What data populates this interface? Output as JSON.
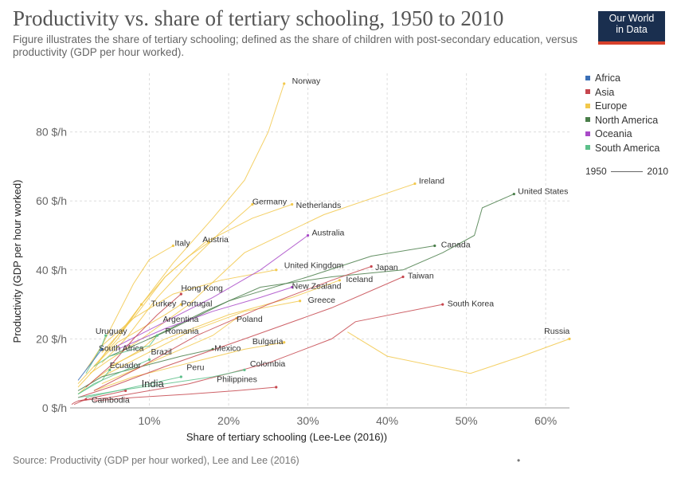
{
  "title": "Productivity vs. share of tertiary schooling, 1950 to 2010",
  "subtitle": "Figure illustrates the share of tertiary schooling; defined as the share of children with post-secondary education, versus productivity (GDP per hour worked).",
  "logo": {
    "line1": "Our World",
    "line2": "in Data"
  },
  "source": "Source: Productivity (GDP per hour worked), Lee and Lee (2016)",
  "footer_dot": "•",
  "timeline": {
    "start": "1950",
    "end": "2010"
  },
  "chart_data": {
    "type": "scatter",
    "xlabel": "Share of tertiary schooling (Lee-Lee (2016))",
    "ylabel": "Productivity (GDP per hour worked)",
    "xlim": [
      0,
      63
    ],
    "ylim": [
      0,
      97
    ],
    "x_ticks": [
      {
        "value": 10,
        "label": "10%"
      },
      {
        "value": 20,
        "label": "20%"
      },
      {
        "value": 30,
        "label": "30%"
      },
      {
        "value": 40,
        "label": "40%"
      },
      {
        "value": 50,
        "label": "50%"
      },
      {
        "value": 60,
        "label": "60%"
      }
    ],
    "y_ticks": [
      {
        "value": 0,
        "label": "0 $/h"
      },
      {
        "value": 20,
        "label": "20 $/h"
      },
      {
        "value": 40,
        "label": "40 $/h"
      },
      {
        "value": 60,
        "label": "60 $/h"
      },
      {
        "value": 80,
        "label": "80 $/h"
      }
    ],
    "grid": true,
    "legend_position": "top-right",
    "regions": [
      {
        "name": "Africa",
        "color": "#3b6fb6"
      },
      {
        "name": "Asia",
        "color": "#c6464e"
      },
      {
        "name": "Europe",
        "color": "#f2c84b"
      },
      {
        "name": "North America",
        "color": "#4a7e4a"
      },
      {
        "name": "Oceania",
        "color": "#a94ac8"
      },
      {
        "name": "South America",
        "color": "#5cbf8a"
      }
    ],
    "series": [
      {
        "name": "Norway",
        "region": "Europe",
        "points": [
          [
            6.5,
            22
          ],
          [
            9,
            30
          ],
          [
            13,
            42
          ],
          [
            18,
            55
          ],
          [
            22,
            66
          ],
          [
            25,
            80
          ],
          [
            27,
            94
          ]
        ]
      },
      {
        "name": "Ireland",
        "region": "Europe",
        "points": [
          [
            2.5,
            10
          ],
          [
            5,
            14
          ],
          [
            9,
            20
          ],
          [
            15,
            30
          ],
          [
            22,
            45
          ],
          [
            32,
            56
          ],
          [
            43.5,
            65
          ]
        ]
      },
      {
        "name": "Germany",
        "region": "Europe",
        "points": [
          [
            4,
            13
          ],
          [
            7,
            20
          ],
          [
            11,
            32
          ],
          [
            15,
            42
          ],
          [
            19,
            51
          ],
          [
            22,
            57
          ],
          [
            23,
            59
          ]
        ]
      },
      {
        "name": "Netherlands",
        "region": "Europe",
        "points": [
          [
            4,
            16
          ],
          [
            8,
            26
          ],
          [
            12,
            38
          ],
          [
            17,
            48
          ],
          [
            23,
            55
          ],
          [
            28,
            59
          ]
        ]
      },
      {
        "name": "Italy",
        "region": "Europe",
        "points": [
          [
            2,
            11
          ],
          [
            4,
            18
          ],
          [
            6,
            27
          ],
          [
            8,
            36
          ],
          [
            10,
            43
          ],
          [
            13,
            47
          ]
        ]
      },
      {
        "name": "Austria",
        "region": "Europe",
        "points": [
          [
            3,
            12
          ],
          [
            6,
            20
          ],
          [
            9,
            30
          ],
          [
            12,
            38
          ],
          [
            15,
            44
          ],
          [
            17.5,
            48
          ]
        ]
      },
      {
        "name": "Russia",
        "region": "Europe",
        "points": [
          [
            35,
            22
          ],
          [
            40,
            15
          ],
          [
            50.5,
            10
          ],
          [
            57,
            15
          ],
          [
            63,
            20
          ]
        ]
      },
      {
        "name": "Portugal",
        "region": "Europe",
        "points": [
          [
            1,
            7
          ],
          [
            3,
            12
          ],
          [
            6,
            19
          ],
          [
            9,
            23
          ],
          [
            12,
            27
          ],
          [
            14,
            30
          ]
        ]
      },
      {
        "name": "Romania",
        "region": "Europe",
        "points": [
          [
            1,
            4
          ],
          [
            3,
            8
          ],
          [
            6,
            13
          ],
          [
            9,
            17
          ],
          [
            11,
            21
          ]
        ]
      },
      {
        "name": "Bulgaria",
        "region": "Europe",
        "points": [
          [
            3,
            5
          ],
          [
            8,
            9
          ],
          [
            15,
            13
          ],
          [
            22,
            17
          ],
          [
            27,
            19
          ]
        ]
      },
      {
        "name": "Poland",
        "region": "Europe",
        "points": [
          [
            4,
            7
          ],
          [
            9,
            12
          ],
          [
            14,
            17
          ],
          [
            18,
            21
          ],
          [
            21,
            26
          ]
        ]
      },
      {
        "name": "Greece",
        "region": "Europe",
        "points": [
          [
            4,
            9
          ],
          [
            9,
            15
          ],
          [
            15,
            22
          ],
          [
            22,
            28
          ],
          [
            29,
            31
          ]
        ]
      },
      {
        "name": "Turkey",
        "region": "Europe",
        "points": [
          [
            1,
            6
          ],
          [
            3,
            11
          ],
          [
            5,
            18
          ],
          [
            7,
            24
          ],
          [
            9,
            30
          ]
        ]
      },
      {
        "name": "United Kingdom",
        "region": "Europe",
        "points": [
          [
            4,
            18
          ],
          [
            8,
            26
          ],
          [
            13,
            33
          ],
          [
            19,
            37
          ],
          [
            26,
            40
          ]
        ]
      },
      {
        "name": "Iceland",
        "region": "Europe",
        "points": [
          [
            5,
            12
          ],
          [
            12,
            20
          ],
          [
            20,
            27
          ],
          [
            28,
            32
          ],
          [
            34,
            37
          ]
        ]
      },
      {
        "name": "United States",
        "region": "North America",
        "points": [
          [
            10,
            20
          ],
          [
            17,
            28
          ],
          [
            24,
            35
          ],
          [
            33,
            38
          ],
          [
            42,
            40
          ],
          [
            47,
            45
          ],
          [
            51,
            50
          ],
          [
            52,
            58
          ],
          [
            56,
            62
          ]
        ]
      },
      {
        "name": "Canada",
        "region": "North America",
        "points": [
          [
            5,
            15
          ],
          [
            12,
            22
          ],
          [
            20,
            31
          ],
          [
            30,
            38
          ],
          [
            38,
            44
          ],
          [
            46,
            47
          ]
        ]
      },
      {
        "name": "Mexico",
        "region": "North America",
        "points": [
          [
            1,
            5
          ],
          [
            4,
            9
          ],
          [
            9,
            12
          ],
          [
            14,
            15
          ],
          [
            18,
            17
          ]
        ]
      },
      {
        "name": "Australia",
        "region": "Oceania",
        "points": [
          [
            6,
            18
          ],
          [
            12,
            25
          ],
          [
            18,
            32
          ],
          [
            24,
            40
          ],
          [
            30,
            50
          ]
        ]
      },
      {
        "name": "New Zealand",
        "region": "Oceania",
        "points": [
          [
            6,
            17
          ],
          [
            12,
            23
          ],
          [
            18,
            28
          ],
          [
            24,
            32
          ],
          [
            28,
            35
          ]
        ]
      },
      {
        "name": "Japan",
        "region": "Asia",
        "points": [
          [
            3,
            5
          ],
          [
            9,
            12
          ],
          [
            16,
            21
          ],
          [
            25,
            30
          ],
          [
            33,
            37
          ],
          [
            38,
            41
          ]
        ]
      },
      {
        "name": "Taiwan",
        "region": "Asia",
        "points": [
          [
            1,
            3
          ],
          [
            5,
            6
          ],
          [
            12,
            12
          ],
          [
            22,
            20
          ],
          [
            33,
            29
          ],
          [
            42,
            38
          ]
        ]
      },
      {
        "name": "South Korea",
        "region": "Asia",
        "points": [
          [
            1,
            2
          ],
          [
            5,
            3
          ],
          [
            15,
            7
          ],
          [
            25,
            13
          ],
          [
            33,
            20
          ],
          [
            36,
            25
          ],
          [
            47,
            30
          ]
        ]
      },
      {
        "name": "Hong Kong",
        "region": "Asia",
        "points": [
          [
            2,
            6
          ],
          [
            5,
            12
          ],
          [
            8,
            20
          ],
          [
            11,
            27
          ],
          [
            14,
            33
          ]
        ]
      },
      {
        "name": "India",
        "region": "Asia",
        "points": [
          [
            0.5,
            1
          ],
          [
            1.5,
            2
          ],
          [
            3,
            3
          ],
          [
            5,
            4
          ],
          [
            7,
            5
          ]
        ]
      },
      {
        "name": "Cambodia",
        "region": "Asia",
        "points": [
          [
            0.2,
            1
          ],
          [
            0.5,
            1.5
          ],
          [
            1,
            2
          ],
          [
            2,
            2.5
          ]
        ]
      },
      {
        "name": "Philippines",
        "region": "Asia",
        "points": [
          [
            3,
            2
          ],
          [
            8,
            3
          ],
          [
            15,
            4
          ],
          [
            21,
            5
          ],
          [
            26,
            6
          ]
        ]
      },
      {
        "name": "Argentina",
        "region": "South America",
        "points": [
          [
            3,
            12
          ],
          [
            5,
            15
          ],
          [
            8,
            17
          ],
          [
            10,
            18
          ],
          [
            11,
            21
          ]
        ]
      },
      {
        "name": "Brazil",
        "region": "South America",
        "points": [
          [
            1,
            4
          ],
          [
            3,
            7
          ],
          [
            6,
            10
          ],
          [
            9,
            13
          ],
          [
            10,
            14
          ]
        ]
      },
      {
        "name": "Uruguay",
        "region": "South America",
        "points": [
          [
            2,
            10
          ],
          [
            3,
            14
          ],
          [
            4,
            18
          ],
          [
            4.5,
            21
          ]
        ]
      },
      {
        "name": "Ecuador",
        "region": "South America",
        "points": [
          [
            1,
            4
          ],
          [
            2.5,
            6
          ],
          [
            4,
            8
          ],
          [
            5,
            11
          ]
        ]
      },
      {
        "name": "Peru",
        "region": "South America",
        "points": [
          [
            2,
            3
          ],
          [
            6,
            5
          ],
          [
            10,
            7
          ],
          [
            14,
            9
          ]
        ]
      },
      {
        "name": "Colombia",
        "region": "South America",
        "points": [
          [
            1,
            3
          ],
          [
            6,
            5
          ],
          [
            12,
            7
          ],
          [
            18,
            9
          ],
          [
            22,
            11
          ]
        ]
      },
      {
        "name": "South Africa",
        "region": "Africa",
        "points": [
          [
            1,
            8
          ],
          [
            2,
            11
          ],
          [
            3,
            14
          ],
          [
            4,
            17
          ]
        ]
      }
    ],
    "annotations": [
      {
        "text": "Norway",
        "x": 28,
        "y": 94
      },
      {
        "text": "Ireland",
        "x": 44,
        "y": 65
      },
      {
        "text": "United States",
        "x": 56.5,
        "y": 62
      },
      {
        "text": "Germany",
        "x": 23,
        "y": 59
      },
      {
        "text": "Netherlands",
        "x": 28.5,
        "y": 58
      },
      {
        "text": "Australia",
        "x": 30.5,
        "y": 50
      },
      {
        "text": "Italy",
        "x": 13.2,
        "y": 47
      },
      {
        "text": "Austria",
        "x": 16.7,
        "y": 48
      },
      {
        "text": "Canada",
        "x": 46.8,
        "y": 46.5
      },
      {
        "text": "United Kingdom",
        "x": 27,
        "y": 40.5
      },
      {
        "text": "Japan",
        "x": 38.5,
        "y": 40
      },
      {
        "text": "Taiwan",
        "x": 42.6,
        "y": 37.5
      },
      {
        "text": "Iceland",
        "x": 34.8,
        "y": 36.5
      },
      {
        "text": "New Zealand",
        "x": 28,
        "y": 34.5
      },
      {
        "text": "Hong Kong",
        "x": 14,
        "y": 34
      },
      {
        "text": "South Korea",
        "x": 47.6,
        "y": 29.5
      },
      {
        "text": "Turkey",
        "x": 10.2,
        "y": 29.5
      },
      {
        "text": "Portugal",
        "x": 14,
        "y": 29.5
      },
      {
        "text": "Greece",
        "x": 30,
        "y": 30.5
      },
      {
        "text": "Argentina",
        "x": 11.7,
        "y": 25
      },
      {
        "text": "Poland",
        "x": 21,
        "y": 25
      },
      {
        "text": "Uruguay",
        "x": 3.2,
        "y": 21.5
      },
      {
        "text": "Romania",
        "x": 12,
        "y": 21.5
      },
      {
        "text": "Russia",
        "x": 59.8,
        "y": 21.5
      },
      {
        "text": "Bulgaria",
        "x": 23,
        "y": 18.5
      },
      {
        "text": "South Africa",
        "x": 3.6,
        "y": 16.5
      },
      {
        "text": "Mexico",
        "x": 18.2,
        "y": 16.5
      },
      {
        "text": "Brazil",
        "x": 10.2,
        "y": 15.5
      },
      {
        "text": "Ecuador",
        "x": 5,
        "y": 11.5
      },
      {
        "text": "Colombia",
        "x": 22.7,
        "y": 12
      },
      {
        "text": "Peru",
        "x": 14.7,
        "y": 11
      },
      {
        "text": "Philippines",
        "x": 18.5,
        "y": 7.5
      },
      {
        "text": "India",
        "x": 9,
        "y": 6
      },
      {
        "text": "Cambodia",
        "x": 2.7,
        "y": 1.5
      }
    ]
  }
}
